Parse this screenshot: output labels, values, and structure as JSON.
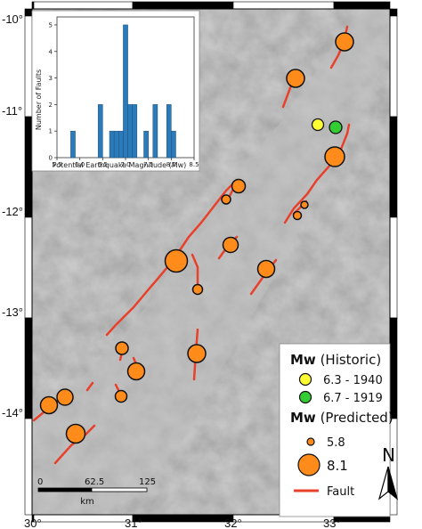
{
  "map": {
    "lat_labels": [
      "-10°",
      "-11°",
      "-12°",
      "-13°",
      "-14°"
    ],
    "lon_labels": [
      "30°",
      "31°",
      "32°",
      "33°"
    ]
  },
  "inset_histogram": {
    "type": "bar",
    "xlabel": "Potential Earthquake Magnitude (Mw)",
    "ylabel": "Number of Faults",
    "xlim": [
      5.5,
      8.5
    ],
    "ylim": [
      0,
      5.3
    ],
    "x_ticks": [
      "5.5",
      "6.0",
      "6.5",
      "7.0",
      "7.5",
      "8.0",
      "8.5"
    ],
    "y_ticks": [
      "0",
      "1",
      "2",
      "3",
      "4",
      "5"
    ],
    "bins": [
      {
        "from": 5.8,
        "to": 5.9,
        "count": 1
      },
      {
        "from": 6.4,
        "to": 6.5,
        "count": 2
      },
      {
        "from": 6.65,
        "to": 6.75,
        "count": 1
      },
      {
        "from": 6.75,
        "to": 6.85,
        "count": 1
      },
      {
        "from": 6.85,
        "to": 6.95,
        "count": 1
      },
      {
        "from": 6.95,
        "to": 7.05,
        "count": 5
      },
      {
        "from": 7.05,
        "to": 7.15,
        "count": 2
      },
      {
        "from": 7.15,
        "to": 7.25,
        "count": 2
      },
      {
        "from": 7.4,
        "to": 7.5,
        "count": 1
      },
      {
        "from": 7.6,
        "to": 7.7,
        "count": 2
      },
      {
        "from": 7.9,
        "to": 8.0,
        "count": 2
      },
      {
        "from": 8.0,
        "to": 8.1,
        "count": 1
      }
    ],
    "bar_color": "#2b7bba"
  },
  "legend": {
    "historic_title_bold": "Mw",
    "historic_title_rest": " (Historic)",
    "historic": [
      {
        "label": "6.3 - 1940",
        "color": "#ffff33"
      },
      {
        "label": "6.7 - 1919",
        "color": "#33cc33"
      }
    ],
    "predicted_title_bold": "Mw",
    "predicted_title_rest": " (Predicted)",
    "predicted": [
      {
        "label": "5.8",
        "size": "small"
      },
      {
        "label": "8.1",
        "size": "large"
      }
    ],
    "fault_label": "Fault",
    "predicted_color": "#ff8c1a",
    "fault_color": "#e8402a"
  },
  "north_arrow": {
    "label": "N"
  },
  "scale_bar": {
    "ticks": [
      "0",
      "62.5",
      "125"
    ],
    "unit": "km"
  }
}
